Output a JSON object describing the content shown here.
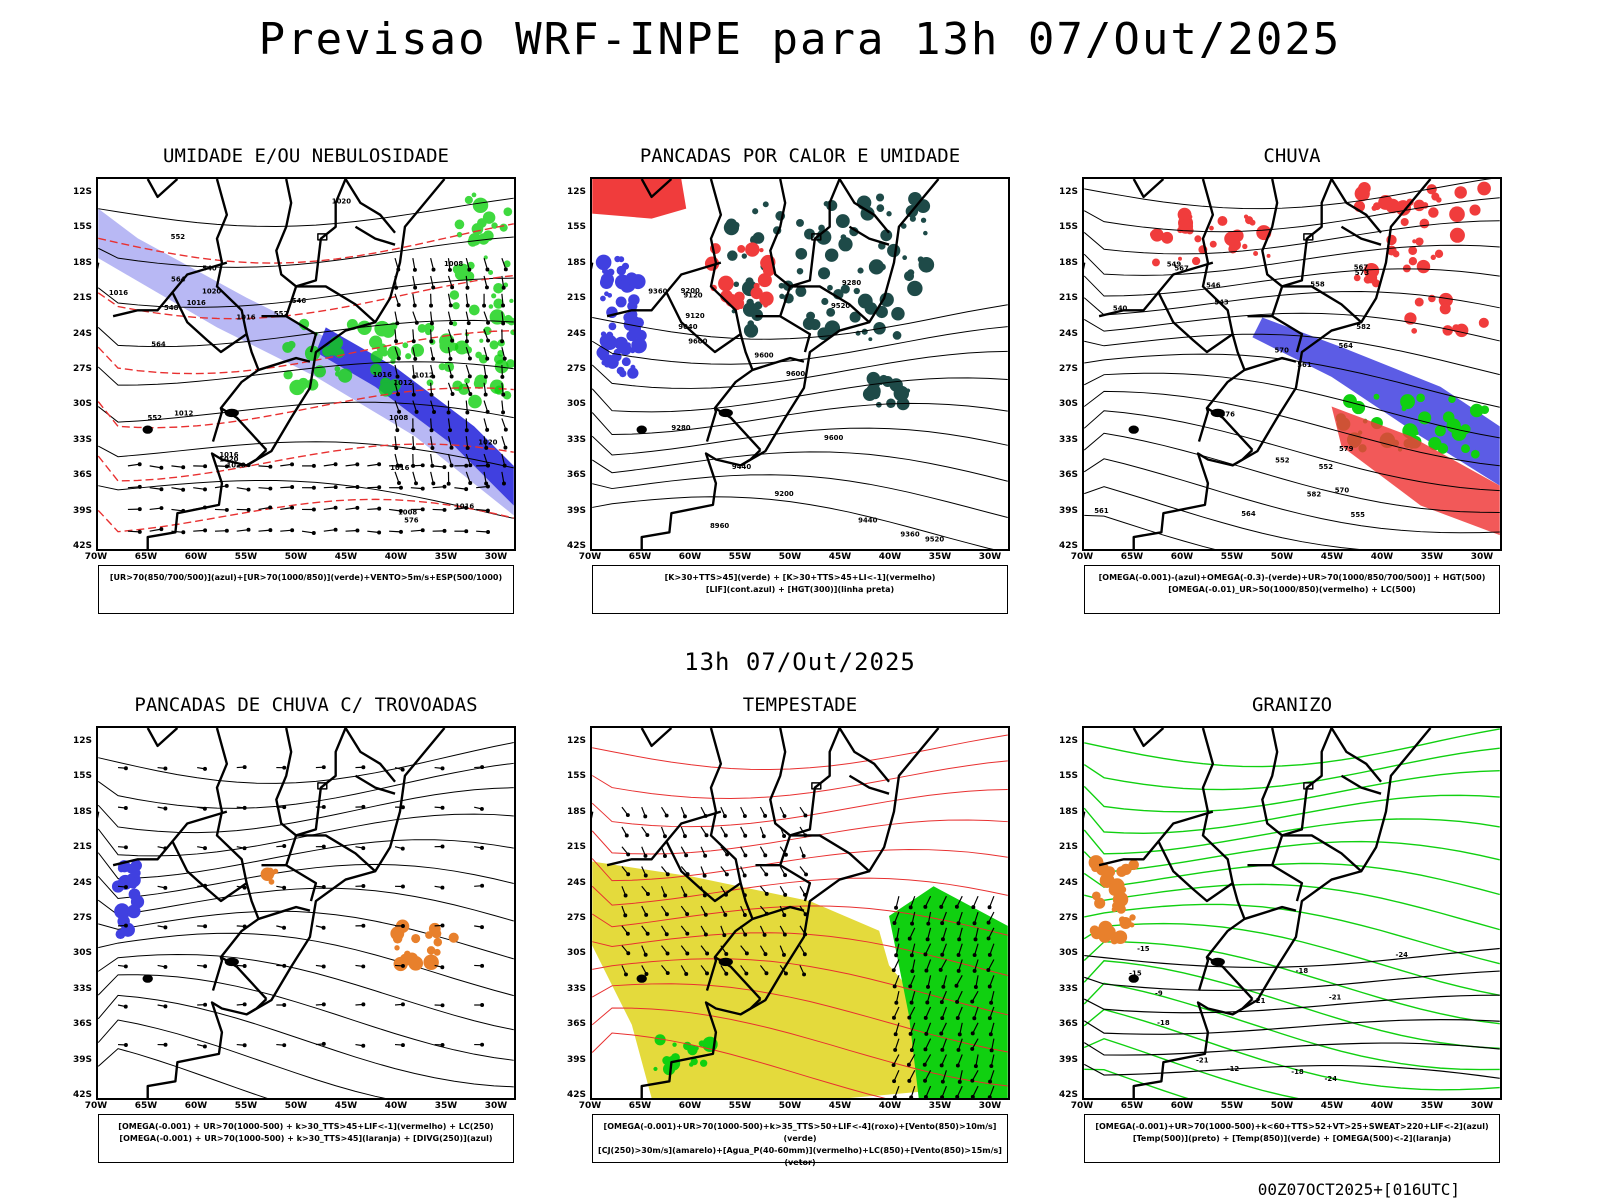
{
  "header": {
    "title": "Previsao WRF-INPE  para 13h 07/Out/2025",
    "mid_title": "13h 07/Out/2025",
    "footer": "00Z07OCT2025+[016UTC]"
  },
  "axes": {
    "lat_labels": [
      "12S",
      "15S",
      "18S",
      "21S",
      "24S",
      "27S",
      "30S",
      "33S",
      "36S",
      "39S",
      "42S"
    ],
    "lon_labels": [
      "70W",
      "65W",
      "60W",
      "55W",
      "50W",
      "45W",
      "40W",
      "35W",
      "30W"
    ]
  },
  "panels": [
    {
      "id": "umidade",
      "title": "UMIDADE E/OU NEBULOSIDADE",
      "legend": [
        "[UR>70(850/700/500)](azul)+[UR>70(1000/850)](verde)+VENTO>5m/s+ESP(500/1000)"
      ],
      "contour_labels": [
        "1012",
        "1008",
        "1008",
        "1012",
        "1016",
        "1016",
        "1020",
        "1016",
        "1016",
        "1020",
        "1020",
        "1016",
        "1016",
        "1012",
        "1020",
        "1016",
        "1008",
        "1020",
        "576",
        "564",
        "552",
        "548",
        "540",
        "552",
        "564",
        "546",
        "552"
      ]
    },
    {
      "id": "pancadas-calor",
      "title": "PANCADAS POR CALOR E UMIDADE",
      "legend": [
        "[K>30+TTS>45](verde) + [K>30+TTS>45+LI<-1](vermelho)",
        "[LIF](cont.azul) + [HGT(300)](linha preta)"
      ],
      "contour_labels": [
        "9600",
        "9600",
        "9600",
        "9600",
        "9520",
        "9440",
        "9360",
        "9360",
        "9280",
        "9200",
        "9120",
        "9040",
        "8960",
        "9520",
        "9440",
        "9280",
        "9200",
        "9120"
      ]
    },
    {
      "id": "chuva",
      "title": "CHUVA",
      "legend": [
        "[OMEGA(-0.001)-(azul)+OMEGA(-0.3)-(verde)+UR>70(1000/850/700/500)] + HGT(500)",
        "[OMEGA(-0.01)_UR>50(1000/850)(vermelho) + LC(500)"
      ],
      "contour_labels": [
        "582",
        "582",
        "579",
        "576",
        "573",
        "570",
        "567",
        "564",
        "561",
        "558",
        "555",
        "552",
        "549",
        "546",
        "543",
        "540",
        "570",
        "567",
        "564",
        "561",
        "552"
      ]
    },
    {
      "id": "pancadas-trovoadas",
      "title": "PANCADAS DE CHUVA C/ TROVOADAS",
      "legend": [
        "[OMEGA(-0.001) + UR>70(1000-500) + k>30_TTS>45+LIF<-1](vermelho) + LC(250)",
        "[OMEGA(-0.001) + UR>70(1000-500) + k>30_TTS>45](laranja) + [DIVG(250)](azul)"
      ],
      "contour_labels": []
    },
    {
      "id": "tempestade",
      "title": "TEMPESTADE",
      "legend": [
        "[OMEGA(-0.001)+UR>70(1000-500)+k>35_TTS>50+LIF<-4](roxo)+[Vento(850)>10m/s](verde)",
        "[CJ(250)>30m/s](amarelo)+[Agua_P(40-60mm)](vermelho)+LC(850)+[Vento(850)>15m/s](vetor)"
      ],
      "contour_labels": []
    },
    {
      "id": "granizo",
      "title": "GRANIZO",
      "legend": [
        "[OMEGA(-0.001)+UR>70(1000-500)+k<60+TTS>52+VT>25+SWEAT>220+LIF<-2](azul)",
        "[Temp(500)](preto) + [Temp(850)](verde) + [OMEGA(500)<-2](laranja)"
      ],
      "contour_labels": [
        "-15",
        "-18",
        "-21",
        "-24",
        "-12",
        "-9",
        "-18",
        "-21",
        "-15",
        "-18",
        "-21",
        "-24"
      ]
    }
  ],
  "colors": {
    "azul_claro": "#b8b8f4",
    "azul": "#4040e0",
    "verde": "#10d010",
    "vermelho": "#f03c3c",
    "verde_escuro": "#1e4a48",
    "amarelo": "#e4da3c",
    "laranja": "#e8802c",
    "contorno": "#000000",
    "linha_vermelha": "#e83030"
  }
}
